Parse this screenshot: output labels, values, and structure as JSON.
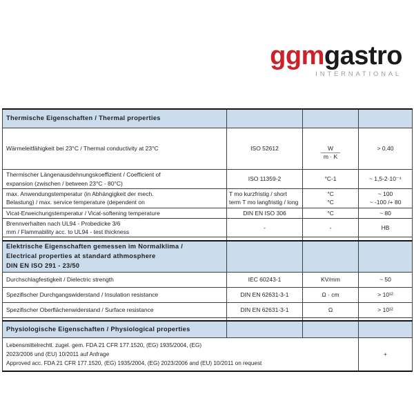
{
  "logo": {
    "part_red": "ggm",
    "part_black": "gastro",
    "subtitle": "INTERNATIONAL",
    "red_color": "#cc2128",
    "black_color": "#1a1a1a",
    "gray_color": "#9b9b9b"
  },
  "colors": {
    "section_header_bg": "#cbdcec",
    "border": "#3f3f3f",
    "text": "#1f1f1f"
  },
  "thermal": {
    "header": "Thermische Eigenschaften / Thermal properties",
    "rows": [
      {
        "property": "Wärmeleitfähigkeit bei 23°C / Thermal conductivity at 23°C",
        "standard": "ISO 52612",
        "unit_num": "W",
        "unit_den": "m · K",
        "value": "> 0,40"
      },
      {
        "property": "Thermischer Längenausdehnungskoeffizient / Coefficient of\nexpansion (zwischen / between 23°C - 80°C)",
        "standard": "ISO 11359-2",
        "unit": "°C-1",
        "value": "~ 1,5-2·10⁻⁴"
      },
      {
        "property": "max. Anwendungstemperatur (in Abhängigkeit der mech.\nBelastung) / max. service temperature (dependent on",
        "standard": "T mo kurzfristig / short\nterm T mo langfristig / long",
        "unit": "°C\n°C",
        "value": "~ 100\n~ -100 /+ 80"
      },
      {
        "property": "Vicat-Erweichungstemperatur / Vicat-softening temperature",
        "standard": "DIN EN ISO 306",
        "unit": "°C",
        "value": "~ 80"
      },
      {
        "property": "Brennverhalten nach UL94 - Probedicke 3/6\nmm / Flammability acc. to UL94 - test thickness",
        "standard": "-",
        "unit": "-",
        "value": "HB"
      }
    ]
  },
  "electrical": {
    "header": "Elektrische Eigenschaften gemessen im Normalklima /\nElectrical properties at standard athmosphere\nDIN EN ISO 291 - 23/50",
    "rows": [
      {
        "property": "Durchschlagfestigkeit / Dielectric strength",
        "standard": "IEC 60243-1",
        "unit": "KV/mm",
        "value": "~ 50"
      },
      {
        "property": "Spezifischer Durchgangswiderstand / Insulation resistance",
        "standard": "DIN EN 62631-3-1",
        "unit": "Ω · cm",
        "value": "> 10¹²"
      },
      {
        "property": "Spezifischer Oberflächenwiderstand / Surface resistance",
        "standard": "DIN EN 62631-3-1",
        "unit": "Ω",
        "value": "> 10¹²"
      }
    ]
  },
  "physiological": {
    "header": "Physiologische Eigenschaften / Physiological properties",
    "rows": [
      {
        "property": "Lebensmittelrechtl. zugel. gem. FDA 21 CFR 177.1520, (EG) 1935/2004, (EG)\n2023/2006 und (EU) 10/2011 auf Anfrage\nApproved acc. FDA 21 CFR 177.1520, (EG) 1935/2004, (EG) 2023/2006 and (EU) 10/2011 on request",
        "value": "+"
      }
    ]
  }
}
